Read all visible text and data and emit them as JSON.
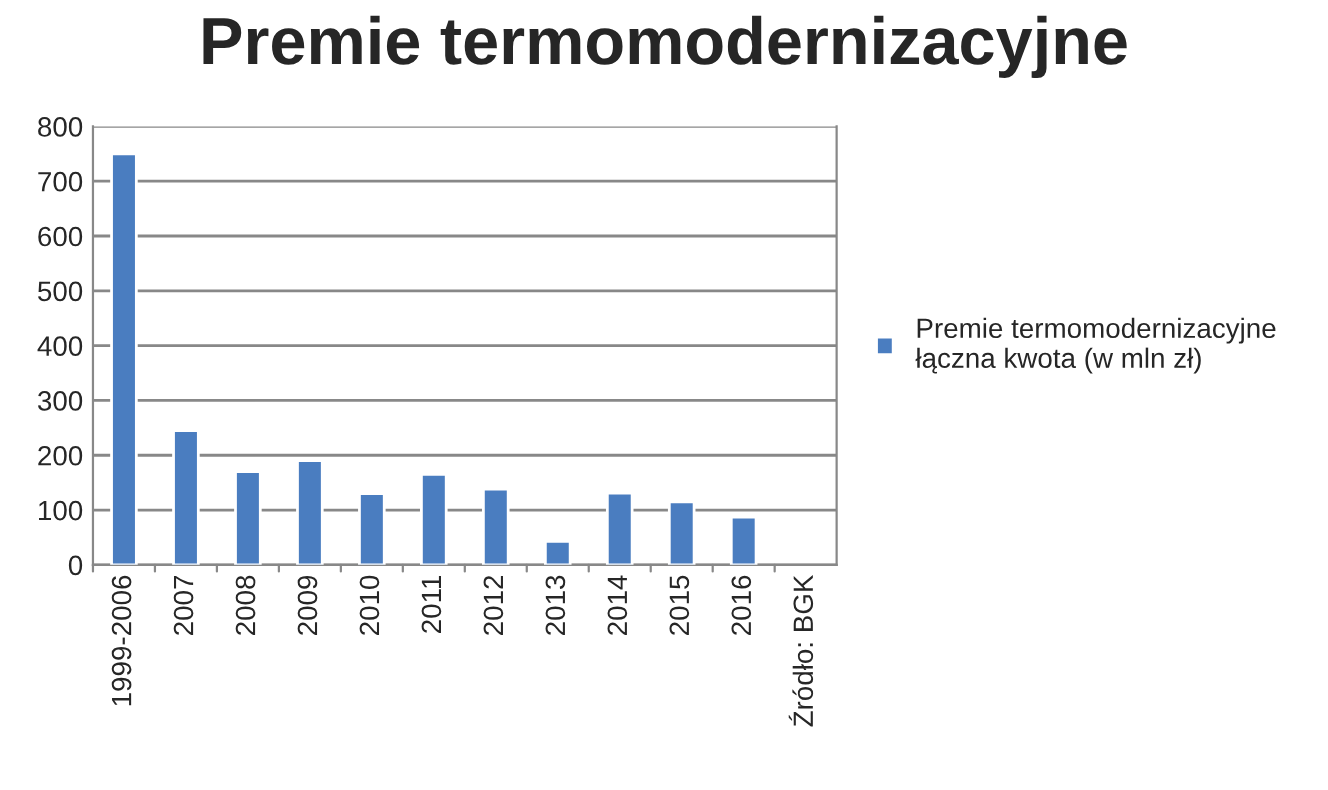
{
  "chart_data": {
    "type": "bar",
    "title": "Premie termomodernizacyjne",
    "categories": [
      "1999-2006",
      "2007",
      "2008",
      "2009",
      "2010",
      "2011",
      "2012",
      "2013",
      "2014",
      "2015",
      "2016",
      "Źródło: BGK"
    ],
    "series": [
      {
        "name": "Premie termomodernizacyjne łączna kwota (w mln zł)",
        "color": "#4a7dc0",
        "values": [
          750,
          245,
          170,
          190,
          130,
          165,
          138,
          43,
          131,
          115,
          87,
          null
        ]
      }
    ],
    "ylim": [
      0,
      800
    ],
    "yticks": [
      0,
      100,
      200,
      300,
      400,
      500,
      600,
      700,
      800
    ],
    "grid": "y",
    "legend": "right"
  }
}
